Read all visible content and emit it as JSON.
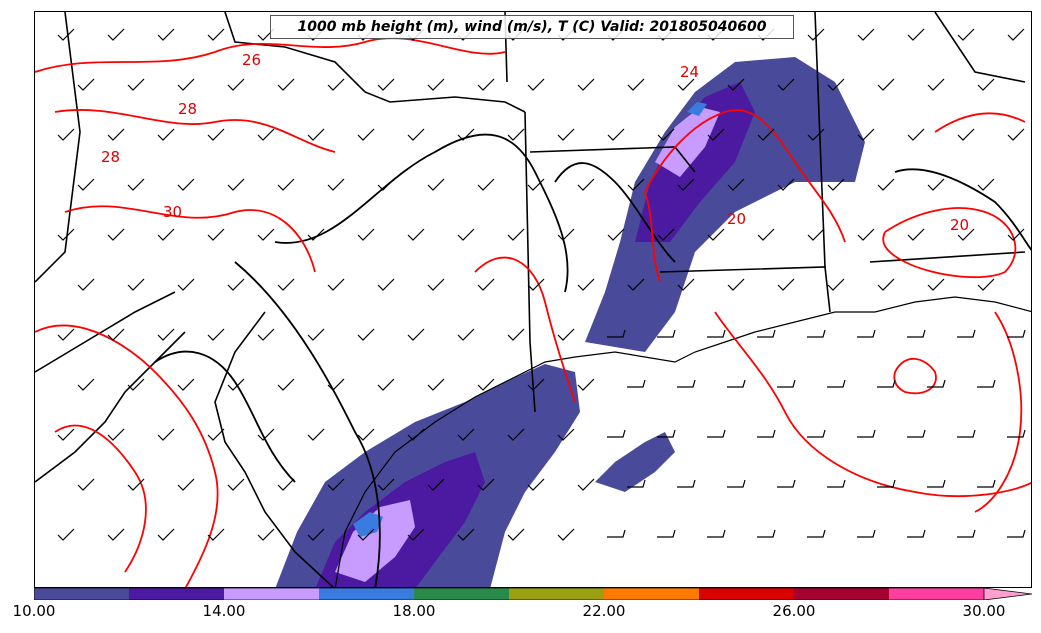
{
  "title": "1000 mb height (m), wind (m/s), T (C) Valid: 201805040600",
  "colorbar": {
    "ticks": [
      "10.00",
      "14.00",
      "18.00",
      "22.00",
      "26.00",
      "30.00"
    ],
    "colors": [
      "#4a4a9a",
      "#4b1aa0",
      "#c79bff",
      "#3a7be0",
      "#2a8a4a",
      "#9aa012",
      "#ff7a00",
      "#d90000",
      "#a50030",
      "#ff3fa0",
      "#ff9fd0"
    ],
    "min": 10,
    "max": 30,
    "extend": "max"
  },
  "contour_labels": [
    "26",
    "28",
    "28",
    "30",
    "20",
    "24",
    "20"
  ],
  "colors": {
    "temperature_contour": "#ff0000",
    "height_contour": "#000000",
    "borders": "#000000"
  },
  "icons": [
    "wind-barb-icon"
  ]
}
